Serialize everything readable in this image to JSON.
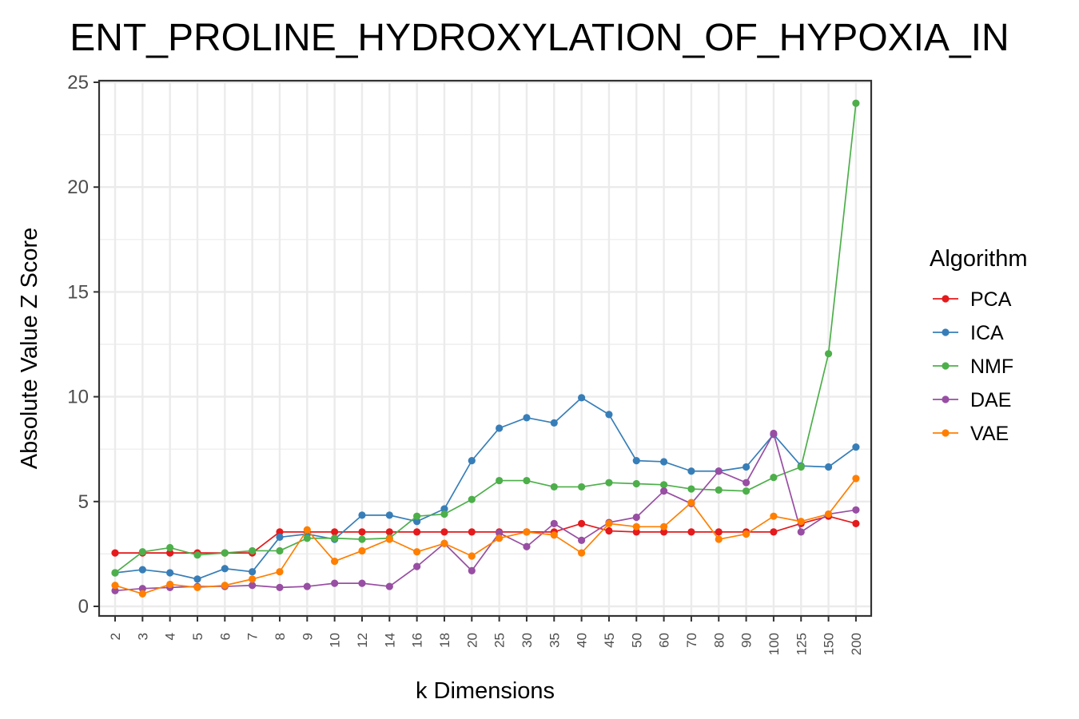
{
  "chart_data": {
    "type": "line",
    "title": "ENT_PROLINE_HYDROXYLATION_OF_HYPOXIA_IN",
    "xlabel": "k Dimensions",
    "ylabel": "Absolute Value Z Score",
    "ylim": [
      0,
      25
    ],
    "yticks": [
      0,
      5,
      10,
      15,
      20,
      25
    ],
    "grid": true,
    "legend_title": "Algorithm",
    "legend_position": "right",
    "categories": [
      "2",
      "3",
      "4",
      "5",
      "6",
      "7",
      "8",
      "9",
      "10",
      "12",
      "14",
      "16",
      "18",
      "20",
      "25",
      "30",
      "35",
      "40",
      "45",
      "50",
      "60",
      "70",
      "80",
      "90",
      "100",
      "125",
      "150",
      "200"
    ],
    "series": [
      {
        "name": "PCA",
        "color": "#E41A1C",
        "values": [
          2.55,
          2.55,
          2.55,
          2.55,
          2.55,
          2.55,
          3.55,
          3.55,
          3.55,
          3.55,
          3.55,
          3.55,
          3.55,
          3.55,
          3.55,
          3.55,
          3.55,
          3.95,
          3.6,
          3.55,
          3.55,
          3.55,
          3.55,
          3.55,
          3.55,
          3.95,
          4.3,
          3.95
        ]
      },
      {
        "name": "ICA",
        "color": "#377EB8",
        "values": [
          1.6,
          1.75,
          1.6,
          1.3,
          1.8,
          1.65,
          3.3,
          3.45,
          3.2,
          4.35,
          4.35,
          4.05,
          4.65,
          6.95,
          8.5,
          9.0,
          8.75,
          9.95,
          9.15,
          6.95,
          6.9,
          6.45,
          6.45,
          6.65,
          8.2,
          6.7,
          6.65,
          7.6
        ]
      },
      {
        "name": "NMF",
        "color": "#4DAF4A",
        "values": [
          1.6,
          2.6,
          2.8,
          2.45,
          2.55,
          2.65,
          2.65,
          3.25,
          3.25,
          3.2,
          3.25,
          4.3,
          4.4,
          5.1,
          6.0,
          6.0,
          5.7,
          5.7,
          5.9,
          5.85,
          5.8,
          5.6,
          5.55,
          5.5,
          6.15,
          6.65,
          12.05,
          24.0
        ]
      },
      {
        "name": "DAE",
        "color": "#984EA3",
        "values": [
          0.75,
          0.85,
          0.9,
          0.95,
          0.95,
          1.0,
          0.9,
          0.95,
          1.1,
          1.1,
          0.95,
          1.9,
          3.0,
          1.7,
          3.5,
          2.85,
          3.95,
          3.15,
          4.0,
          4.25,
          5.5,
          4.9,
          6.45,
          5.9,
          8.25,
          3.55,
          4.4,
          4.6
        ]
      },
      {
        "name": "VAE",
        "color": "#FF7F00",
        "values": [
          1.0,
          0.6,
          1.05,
          0.9,
          1.0,
          1.3,
          1.65,
          3.65,
          2.15,
          2.65,
          3.2,
          2.6,
          3.0,
          2.4,
          3.25,
          3.55,
          3.4,
          2.55,
          3.95,
          3.8,
          3.8,
          4.95,
          3.2,
          3.45,
          4.3,
          4.05,
          4.4,
          6.1
        ]
      }
    ]
  }
}
